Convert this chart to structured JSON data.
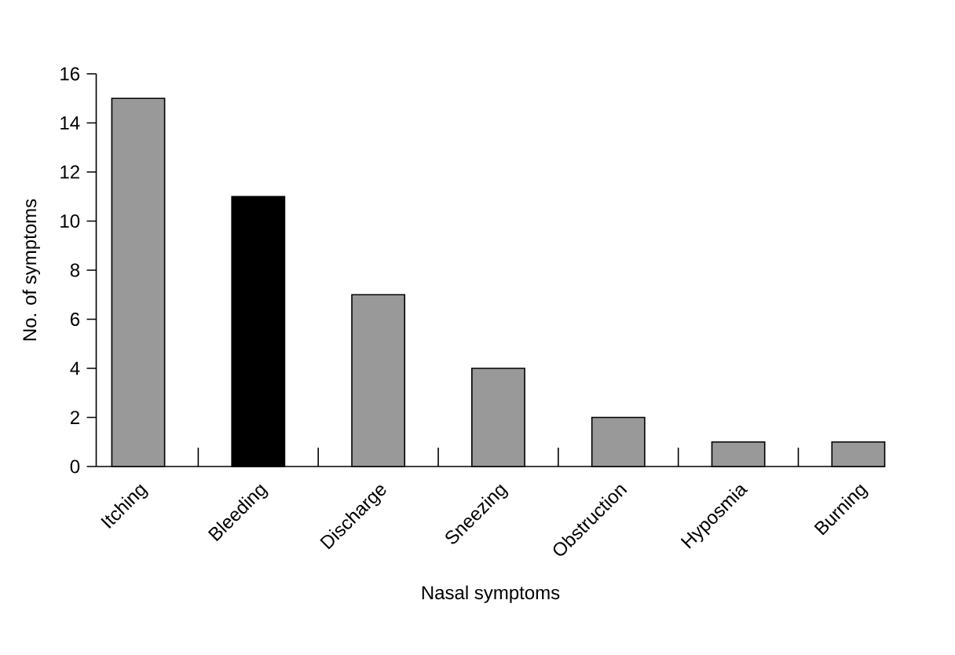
{
  "chart_data": {
    "type": "bar",
    "xlabel": "Nasal symptoms",
    "ylabel": "No. of symptoms",
    "categories": [
      "Itching",
      "Bleeding",
      "Discharge",
      "Sneezing",
      "Obstruction",
      "Hyposmia",
      "Burning"
    ],
    "values": [
      15,
      11,
      7,
      4,
      2,
      1,
      1
    ],
    "colors": [
      "#999999",
      "#000000",
      "#999999",
      "#999999",
      "#999999",
      "#999999",
      "#999999"
    ],
    "ylim": [
      0,
      16
    ],
    "yticks": [
      0,
      2,
      4,
      6,
      8,
      10,
      12,
      14,
      16
    ]
  }
}
